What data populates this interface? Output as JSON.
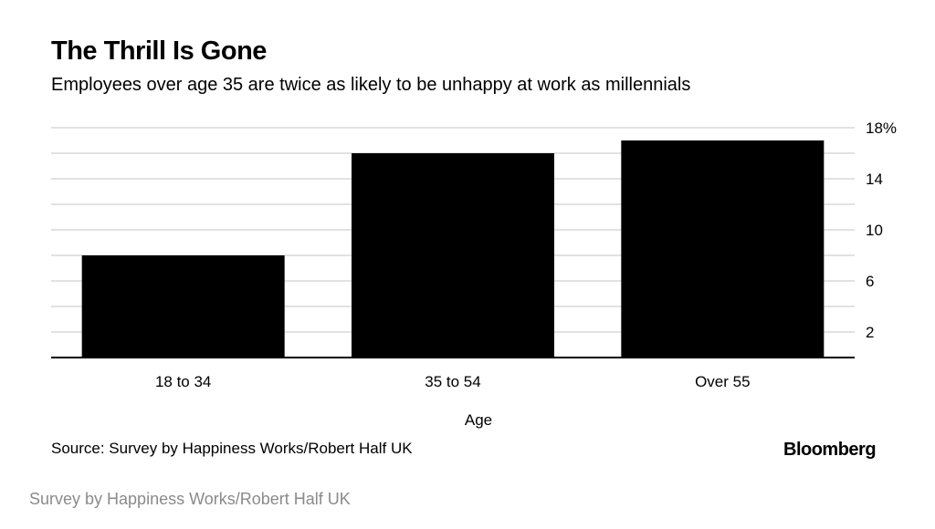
{
  "chart_data": {
    "type": "bar",
    "title": "The Thrill Is Gone",
    "subtitle": "Employees over age 35 are twice as likely to be unhappy at work as millennials",
    "xlabel": "Age",
    "ylabel": "",
    "categories": [
      "18 to 34",
      "35 to 54",
      "Over 55"
    ],
    "values": [
      8,
      16,
      17
    ],
    "ylim": [
      0,
      18
    ],
    "yticks": [
      2,
      6,
      10,
      14,
      18
    ],
    "ytick_labels": [
      "2",
      "6",
      "10",
      "14",
      "18%"
    ],
    "gridlines": [
      2,
      4,
      6,
      8,
      10,
      12,
      14,
      16,
      18
    ],
    "grid": true,
    "y_axis_position": "right",
    "bar_color": "#000000",
    "grid_color": "#d9d9d9"
  },
  "footer": {
    "source": "Source: Survey by Happiness Works/Robert Half UK",
    "brand": "Bloomberg"
  },
  "caption": "Survey by Happiness Works/Robert Half UK"
}
